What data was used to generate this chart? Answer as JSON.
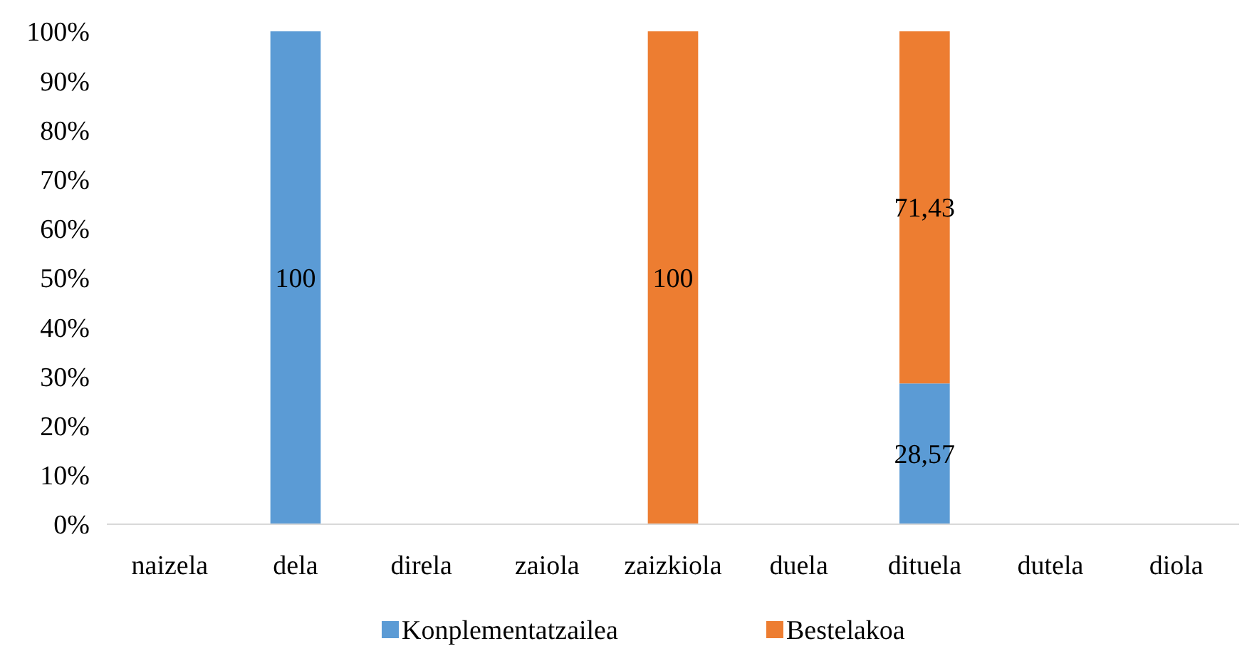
{
  "chart_data": {
    "type": "bar",
    "stacked": true,
    "categories": [
      "naizela",
      "dela",
      "direla",
      "zaiola",
      "zaizkiola",
      "duela",
      "dituela",
      "dutela",
      "diola"
    ],
    "series": [
      {
        "name": "Konplementatzailea",
        "color": "#5b9bd5",
        "values": [
          null,
          100,
          null,
          null,
          null,
          null,
          28.57,
          null,
          null
        ],
        "value_labels": [
          null,
          "100",
          null,
          null,
          null,
          null,
          "28,57",
          null,
          null
        ]
      },
      {
        "name": "Bestelakoa",
        "color": "#ed7d31",
        "values": [
          null,
          null,
          null,
          null,
          100,
          null,
          71.43,
          null,
          null
        ],
        "value_labels": [
          null,
          null,
          null,
          null,
          "100",
          null,
          "71,43",
          null,
          null
        ]
      }
    ],
    "ylim": [
      0,
      100
    ],
    "yticks": [
      {
        "value": 0,
        "label": "0%"
      },
      {
        "value": 10,
        "label": "10%"
      },
      {
        "value": 20,
        "label": "20%"
      },
      {
        "value": 30,
        "label": "30%"
      },
      {
        "value": 40,
        "label": "40%"
      },
      {
        "value": 50,
        "label": "50%"
      },
      {
        "value": 60,
        "label": "60%"
      },
      {
        "value": 70,
        "label": "70%"
      },
      {
        "value": 80,
        "label": "80%"
      },
      {
        "value": 90,
        "label": "90%"
      },
      {
        "value": 100,
        "label": "100%"
      }
    ],
    "grid": false,
    "legend": "bottom"
  }
}
